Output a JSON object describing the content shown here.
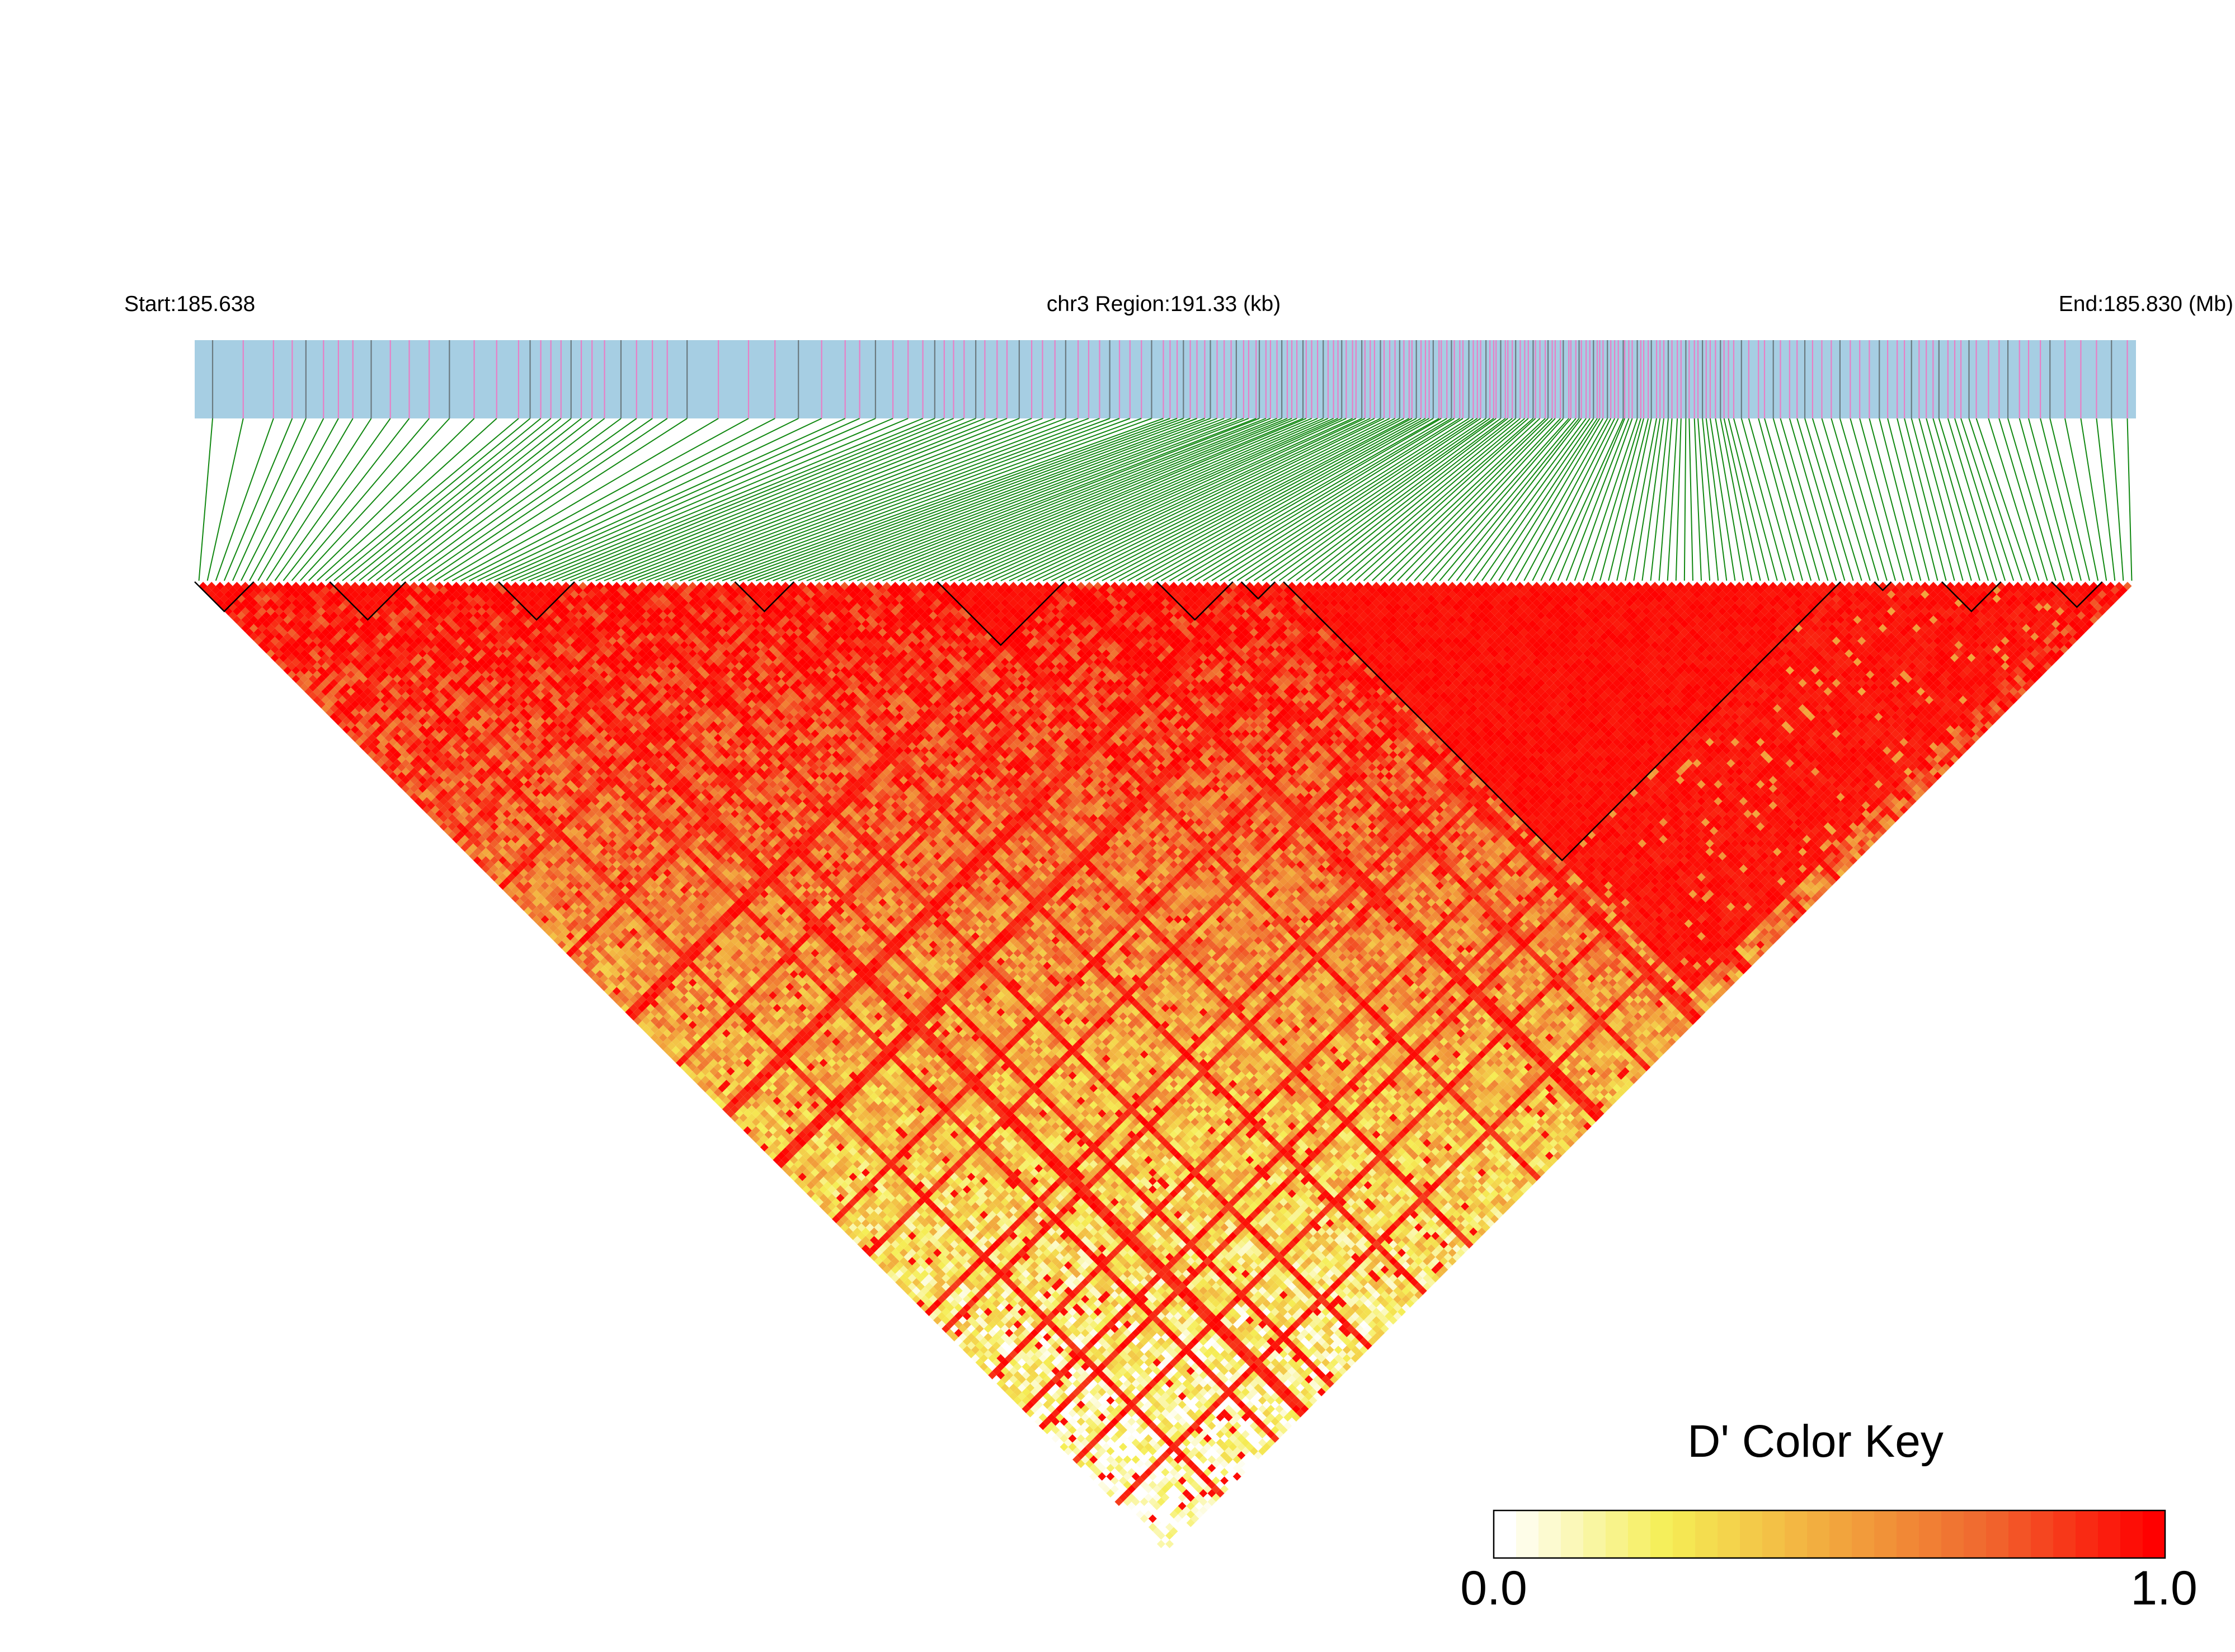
{
  "header": {
    "start_label": "Start:185.638",
    "region_label": "chr3 Region:191.33 (kb)",
    "end_label": "End:185.830 (Mb)"
  },
  "color_key": {
    "title": "D' Color Key",
    "min_label": "0.0",
    "max_label": "1.0",
    "colors": [
      "#ffffff",
      "#f5ee55",
      "#f2a93e",
      "#f0652e",
      "#ff0000"
    ]
  },
  "colors": {
    "track_fill": "#a6cee3",
    "snp_tick_pink": "#e87fc6",
    "snp_tick_grey": "#6b7a80",
    "connector": "#118811",
    "block_outline": "#000000"
  },
  "heatmap": {
    "snp_count": 230,
    "metric": "D'",
    "hotspot_blocks": [
      {
        "from": 0,
        "to": 6
      },
      {
        "from": 16,
        "to": 24
      },
      {
        "from": 36,
        "to": 44
      },
      {
        "from": 64,
        "to": 70
      },
      {
        "from": 88,
        "to": 102
      },
      {
        "from": 114,
        "to": 122
      },
      {
        "from": 124,
        "to": 127
      },
      {
        "from": 129,
        "to": 194
      },
      {
        "from": 199,
        "to": 200
      },
      {
        "from": 207,
        "to": 213
      },
      {
        "from": 220,
        "to": 225
      }
    ]
  }
}
